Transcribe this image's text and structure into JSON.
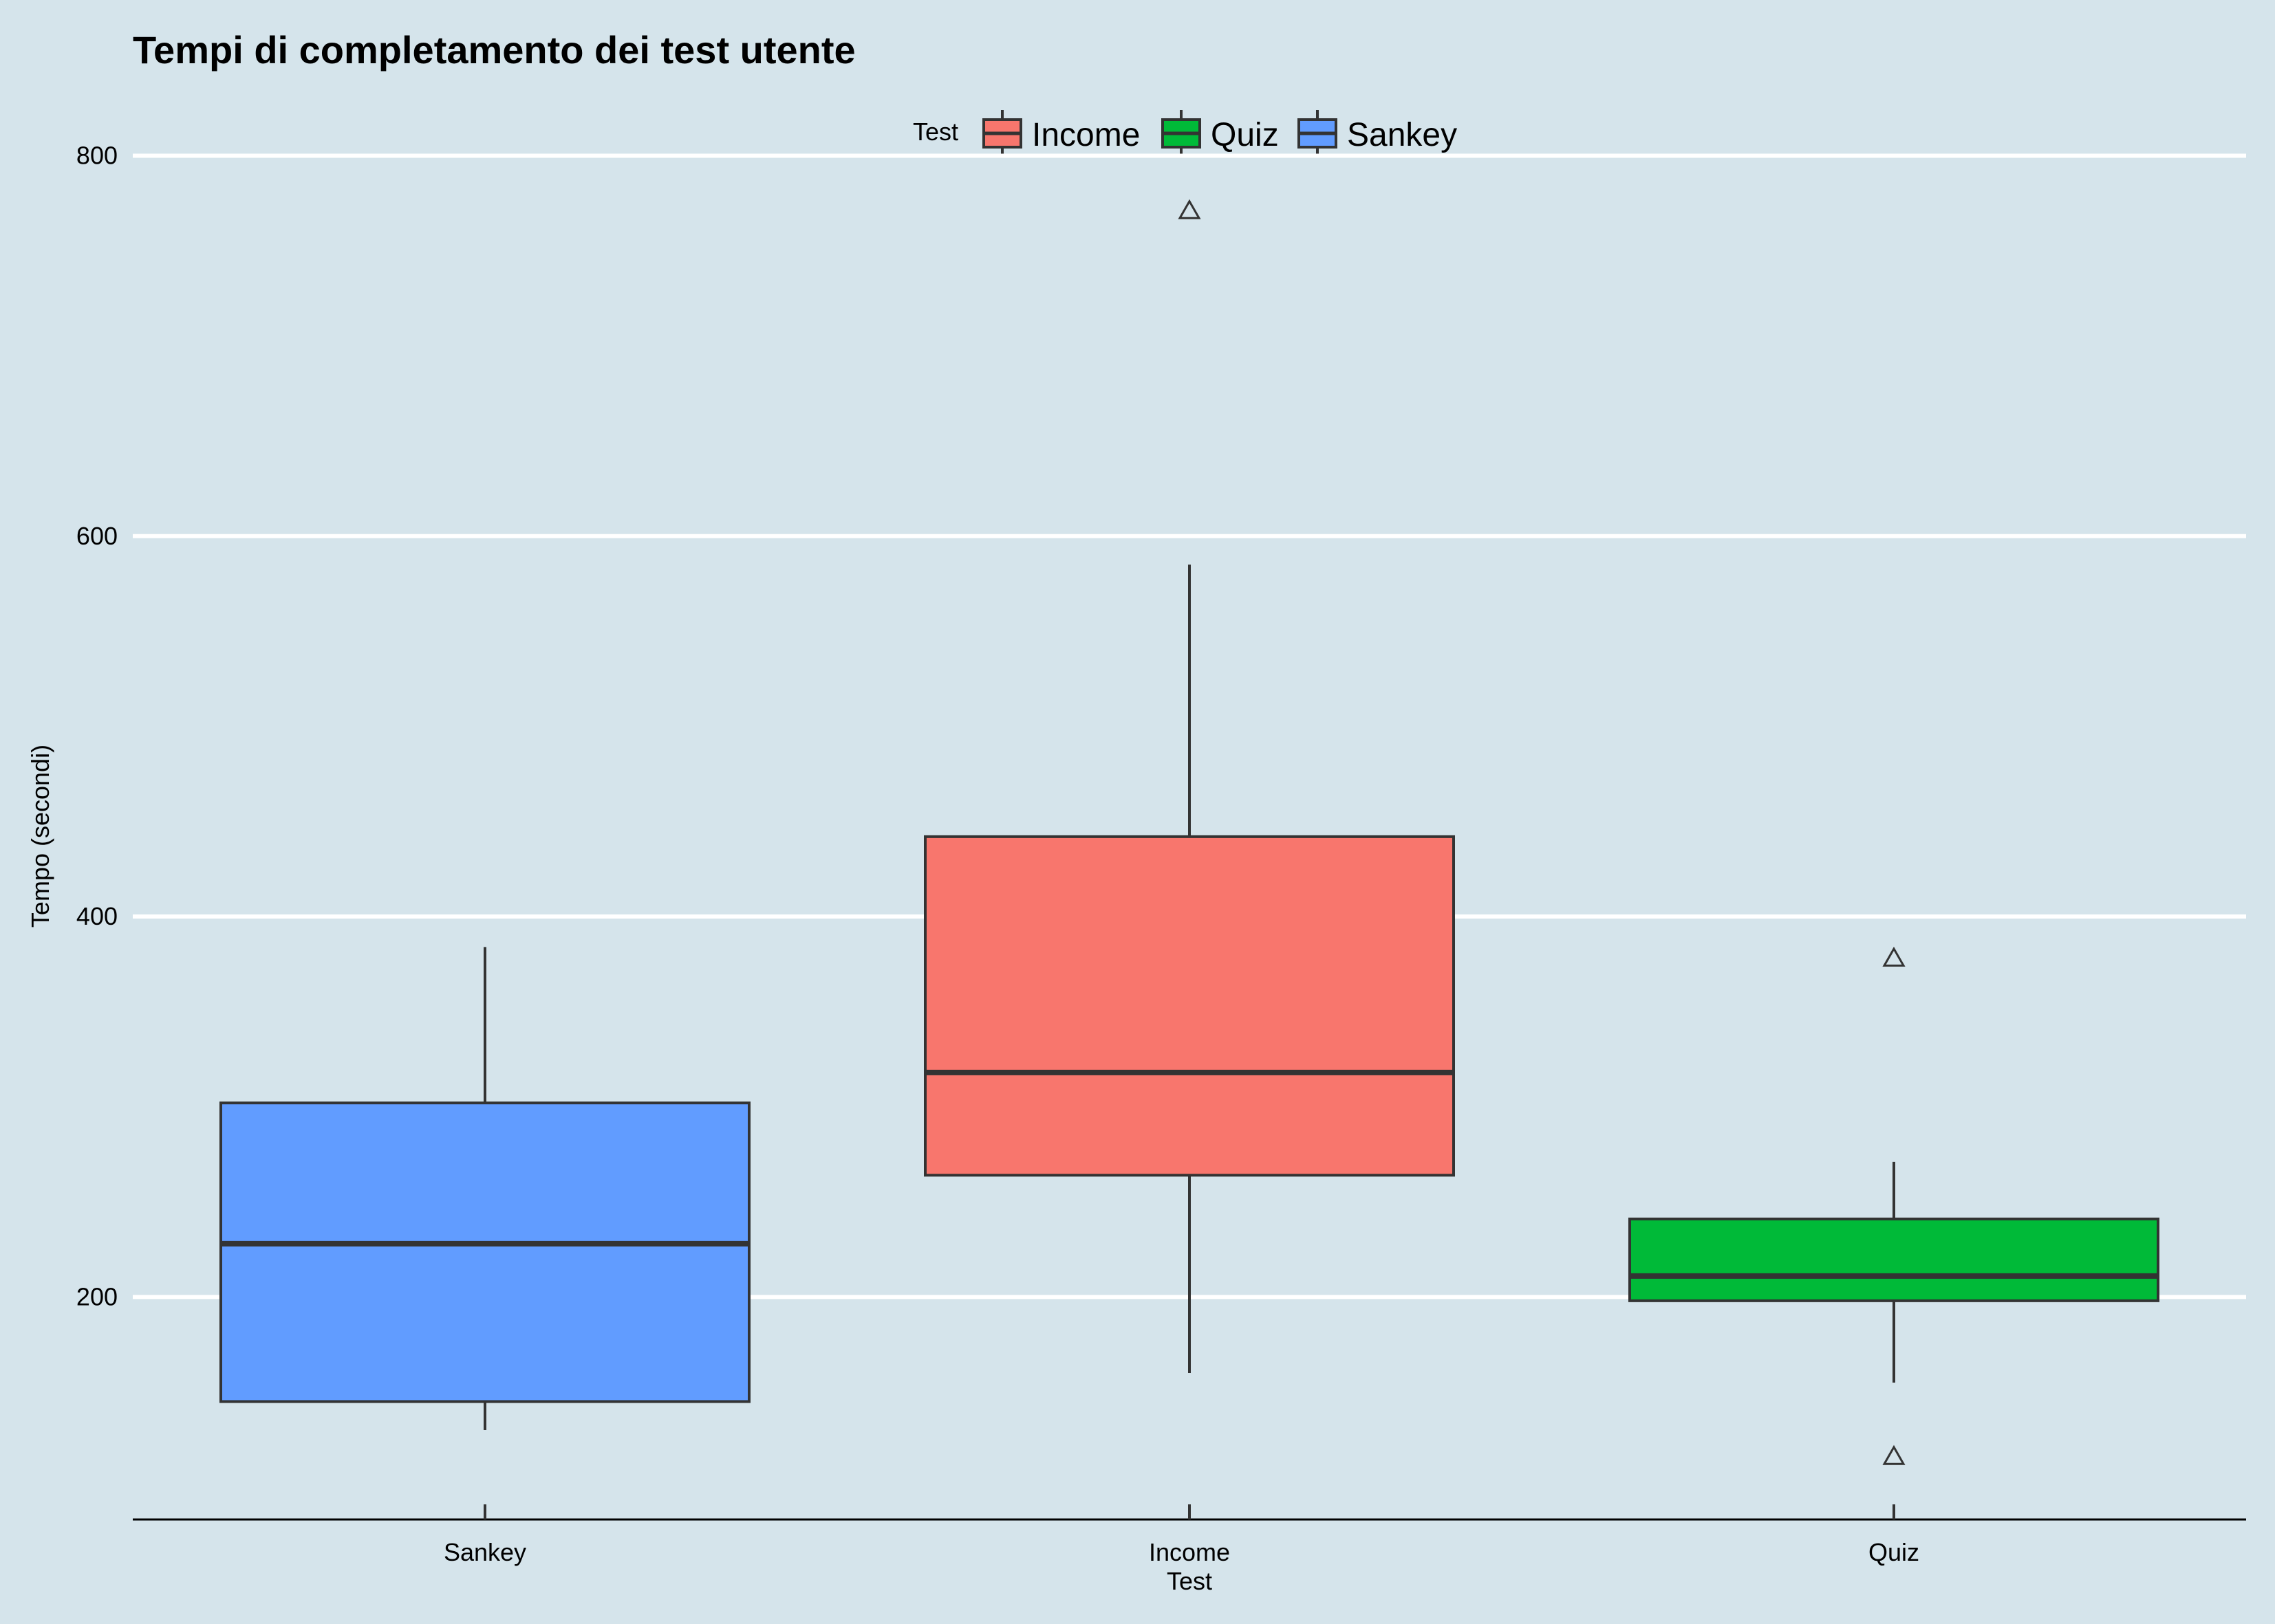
{
  "chart_data": {
    "type": "boxplot",
    "title": "Tempi di completamento dei test utente",
    "xlabel": "Test",
    "ylabel": "Tempo (secondi)",
    "ylim": [
      83,
      815
    ],
    "yticks": [
      200,
      400,
      600,
      800
    ],
    "grid": "horizontal major lines, white",
    "legend": {
      "title": "Test",
      "position": "top",
      "entries": [
        {
          "label": "Income",
          "color": "#f8766d"
        },
        {
          "label": "Quiz",
          "color": "#00ba38"
        },
        {
          "label": "Sankey",
          "color": "#619cff"
        }
      ]
    },
    "categories": [
      "Sankey",
      "Income",
      "Quiz"
    ],
    "boxes": [
      {
        "category": "Sankey",
        "color": "#619cff",
        "whisker_low": 130,
        "q1": 145,
        "median": 228,
        "q3": 302,
        "whisker_high": 384,
        "outliers": []
      },
      {
        "category": "Income",
        "color": "#f8766d",
        "whisker_low": 160,
        "q1": 264,
        "median": 318,
        "q3": 442,
        "whisker_high": 585,
        "outliers": [
          771
        ]
      },
      {
        "category": "Quiz",
        "color": "#00ba38",
        "whisker_low": 155,
        "q1": 198,
        "median": 211,
        "q3": 241,
        "whisker_high": 271,
        "outliers": [
          378,
          116
        ]
      }
    ]
  },
  "colors": {
    "background": "#d5e4eb",
    "gridline": "#ffffff",
    "box_outline": "#333333",
    "axis": "#000000"
  }
}
